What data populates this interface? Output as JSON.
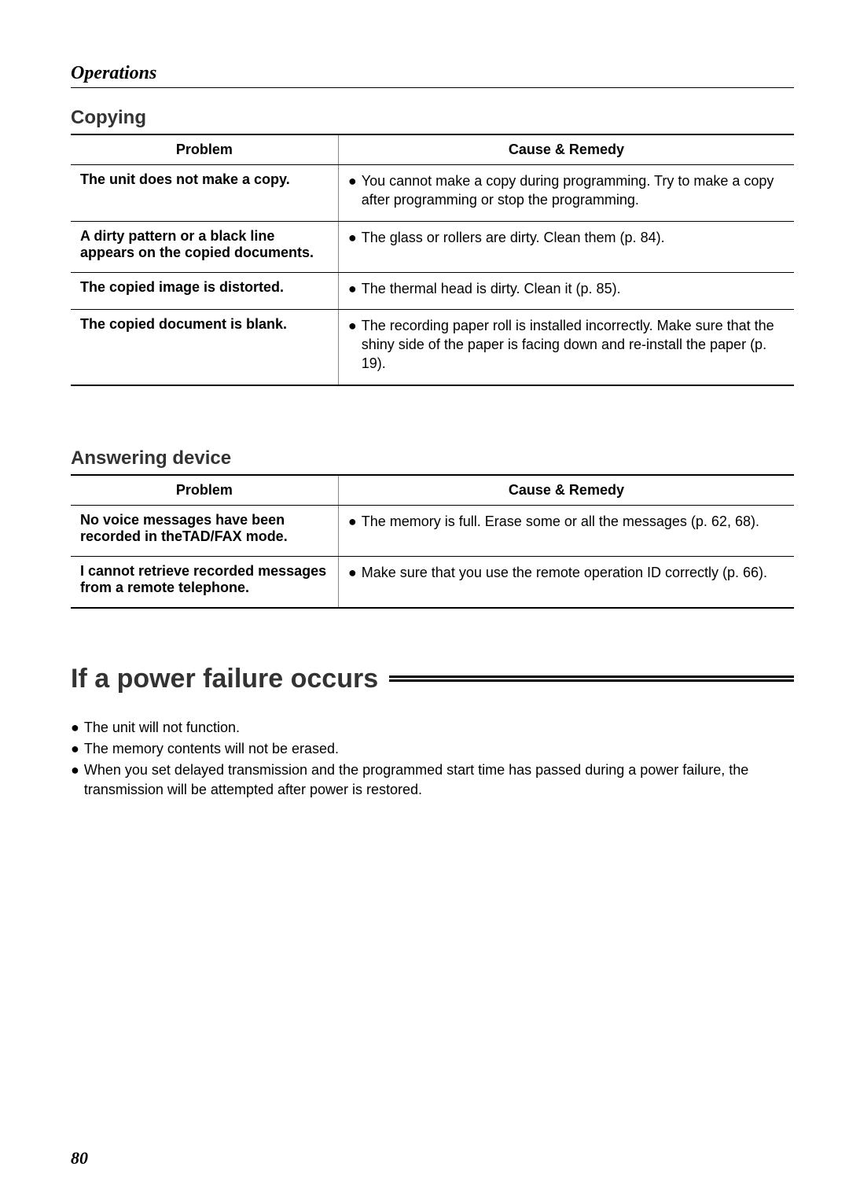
{
  "page": {
    "section": "Operations",
    "pageNumber": "80"
  },
  "copying": {
    "heading": "Copying",
    "headers": {
      "problem": "Problem",
      "remedy": "Cause & Remedy"
    },
    "rows": [
      {
        "problem": "The unit does not make a copy.",
        "remedy": "You cannot make a copy during programming. Try to make a copy after programming or stop the programming."
      },
      {
        "problem": "A dirty pattern or a black line appears on the copied documents.",
        "remedy": "The glass or rollers are dirty. Clean them (p. 84)."
      },
      {
        "problem": "The copied image is distorted.",
        "remedy": "The thermal head is dirty. Clean it (p. 85)."
      },
      {
        "problem": "The copied document is blank.",
        "remedy": "The recording paper roll is installed incorrectly. Make sure that the shiny side of the paper is facing down and re-install the paper (p. 19)."
      }
    ]
  },
  "answering": {
    "heading": "Answering device",
    "headers": {
      "problem": "Problem",
      "remedy": "Cause & Remedy"
    },
    "rows": [
      {
        "problem": "No voice messages have been recorded in theTAD/FAX mode.",
        "remedy": "The memory is full. Erase some or all the messages (p. 62, 68)."
      },
      {
        "problem": "I cannot retrieve recorded messages from a remote telephone.",
        "remedy": "Make sure that you use the remote operation ID correctly (p. 66)."
      }
    ]
  },
  "powerFailure": {
    "heading": "If a power failure occurs",
    "items": [
      "The unit will not function.",
      "The memory contents will not be erased.",
      "When you set delayed transmission and the programmed start time has passed during a power failure, the transmission will be attempted after power is restored."
    ]
  },
  "style": {
    "textColor": "#000000",
    "headingColor": "#333333",
    "background": "#ffffff",
    "bodyFontSize": 18,
    "subheadFontSize": 24,
    "mainHeadFontSize": 34
  }
}
